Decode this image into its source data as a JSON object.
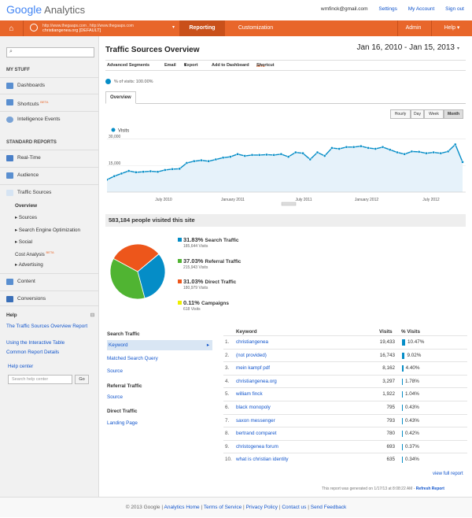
{
  "header": {
    "logo_google": "Google",
    "logo_analytics": "Analytics",
    "email": "wmfinck@gmail.com",
    "settings": "Settings",
    "my_account": "My Account",
    "sign_out": "Sign out"
  },
  "nav": {
    "account_line1": "http://www.thegaaps.com , http://www.thegaaps.com",
    "account_line2": "christiangenea.org [DEFAULT]",
    "reporting": "Reporting",
    "customization": "Customization",
    "admin": "Admin",
    "help": "Help"
  },
  "sidebar": {
    "my_stuff": "MY STUFF",
    "dashboards": "Dashboards",
    "shortcuts": "Shortcuts",
    "beta": "BETA",
    "intelligence": "Intelligence Events",
    "standard_reports": "STANDARD REPORTS",
    "realtime": "Real-Time",
    "audience": "Audience",
    "traffic_sources": "Traffic Sources",
    "overview": "Overview",
    "sources": "Sources",
    "seo": "Search Engine Optimization",
    "social": "Social",
    "cost_analysis": "Cost Analysis",
    "advertising": "Advertising",
    "content": "Content",
    "conversions": "Conversions",
    "help_title": "Help",
    "help_link1": "The Traffic Sources Overview Report",
    "help_link2": "Using the Interactive Table",
    "help_link3": "Common Report Details",
    "help_center": "Help center",
    "help_search_placeholder": "Search help center",
    "go": "Go"
  },
  "main": {
    "title": "Traffic Sources Overview",
    "date_range": "Jan 16, 2010 - Jan 15, 2013",
    "tools": [
      "Advanced Segments",
      "Email",
      "Export",
      "Add to Dashboard",
      "Shortcut"
    ],
    "shortcut_beta": "BETA",
    "pct_visits": "% of visits: 100.00%",
    "overview_tab": "Overview",
    "granularity": [
      "Hourly",
      "Day",
      "Week",
      "Month"
    ],
    "visits_label": "Visits",
    "people_visited": "583,184 people visited this site",
    "view_full_report": "view full report",
    "generated_prefix": "This report was generated on 1/17/13 at 8:08:22 AM -",
    "refresh": "Refresh Report"
  },
  "chart_data": [
    {
      "type": "line",
      "series": [
        {
          "name": "Visits",
          "values": [
            7000,
            9000,
            10500,
            12000,
            11200,
            11500,
            11800,
            11500,
            12500,
            13000,
            13200,
            16500,
            17500,
            18000,
            17500,
            18500,
            19500,
            20000,
            21500,
            20500,
            21000,
            21000,
            21200,
            21000,
            21500,
            20000,
            22500,
            22000,
            18500,
            22500,
            20500,
            25000,
            24500,
            25500,
            25500,
            26000,
            25000,
            24500,
            25500,
            24000,
            22500,
            21500,
            23000,
            22800,
            22000,
            22500,
            22000,
            23000,
            27000,
            17000
          ]
        }
      ],
      "x_tick_labels": [
        "July 2010",
        "January 2011",
        "July 2011",
        "January 2012",
        "July 2012"
      ],
      "y_tick_labels": [
        "30,000",
        "15,000"
      ],
      "ylim": [
        0,
        33000
      ]
    },
    {
      "type": "pie",
      "slices": [
        {
          "name": "Search Traffic",
          "percent": "31.83%",
          "value": 185644,
          "visits_label": "185,644 Visits",
          "color": "#058dc7"
        },
        {
          "name": "Referral Traffic",
          "percent": "37.03%",
          "value": 215943,
          "visits_label": "215,943 Visits",
          "color": "#50b432"
        },
        {
          "name": "Direct Traffic",
          "percent": "31.03%",
          "value": 180979,
          "visits_label": "180,979 Visits",
          "color": "#ed561b"
        },
        {
          "name": "Campaigns",
          "percent": "0.11%",
          "value": 618,
          "visits_label": "618 Visits",
          "color": "#edef00"
        }
      ]
    }
  ],
  "left_panel": {
    "search_traffic": "Search Traffic",
    "keyword": "Keyword",
    "matched_query": "Matched Search Query",
    "source1": "Source",
    "referral_traffic": "Referral Traffic",
    "source2": "Source",
    "direct_traffic": "Direct Traffic",
    "landing_page": "Landing Page"
  },
  "table": {
    "col_keyword": "Keyword",
    "col_visits": "Visits",
    "col_pct": "% Visits",
    "rows": [
      {
        "n": "1.",
        "kw": "christiangenea",
        "visits": "19,433",
        "pct": "10.47%",
        "bar": 10.47
      },
      {
        "n": "2.",
        "kw": "(not provided)",
        "visits": "16,743",
        "pct": "9.02%",
        "bar": 9.02
      },
      {
        "n": "3.",
        "kw": "mein kampf pdf",
        "visits": "8,162",
        "pct": "4.40%",
        "bar": 4.4
      },
      {
        "n": "4.",
        "kw": "christiangenea.org",
        "visits": "3,297",
        "pct": "1.78%",
        "bar": 1.78
      },
      {
        "n": "5.",
        "kw": "william finck",
        "visits": "1,922",
        "pct": "1.04%",
        "bar": 1.04
      },
      {
        "n": "6.",
        "kw": "black monopoly",
        "visits": "795",
        "pct": "0.43%",
        "bar": 0.43
      },
      {
        "n": "7.",
        "kw": "saxon messenger",
        "visits": "793",
        "pct": "0.43%",
        "bar": 0.43
      },
      {
        "n": "8.",
        "kw": "bertrand comparet",
        "visits": "780",
        "pct": "0.42%",
        "bar": 0.42
      },
      {
        "n": "9.",
        "kw": "christogenea forum",
        "visits": "693",
        "pct": "0.37%",
        "bar": 0.37
      },
      {
        "n": "10.",
        "kw": "what is christian identity",
        "visits": "635",
        "pct": "0.34%",
        "bar": 0.34
      }
    ]
  },
  "footer": {
    "copyright": "© 2013 Google",
    "links": [
      "Analytics Home",
      "Terms of Service",
      "Privacy Policy",
      "Contact us",
      "Send Feedback"
    ]
  }
}
